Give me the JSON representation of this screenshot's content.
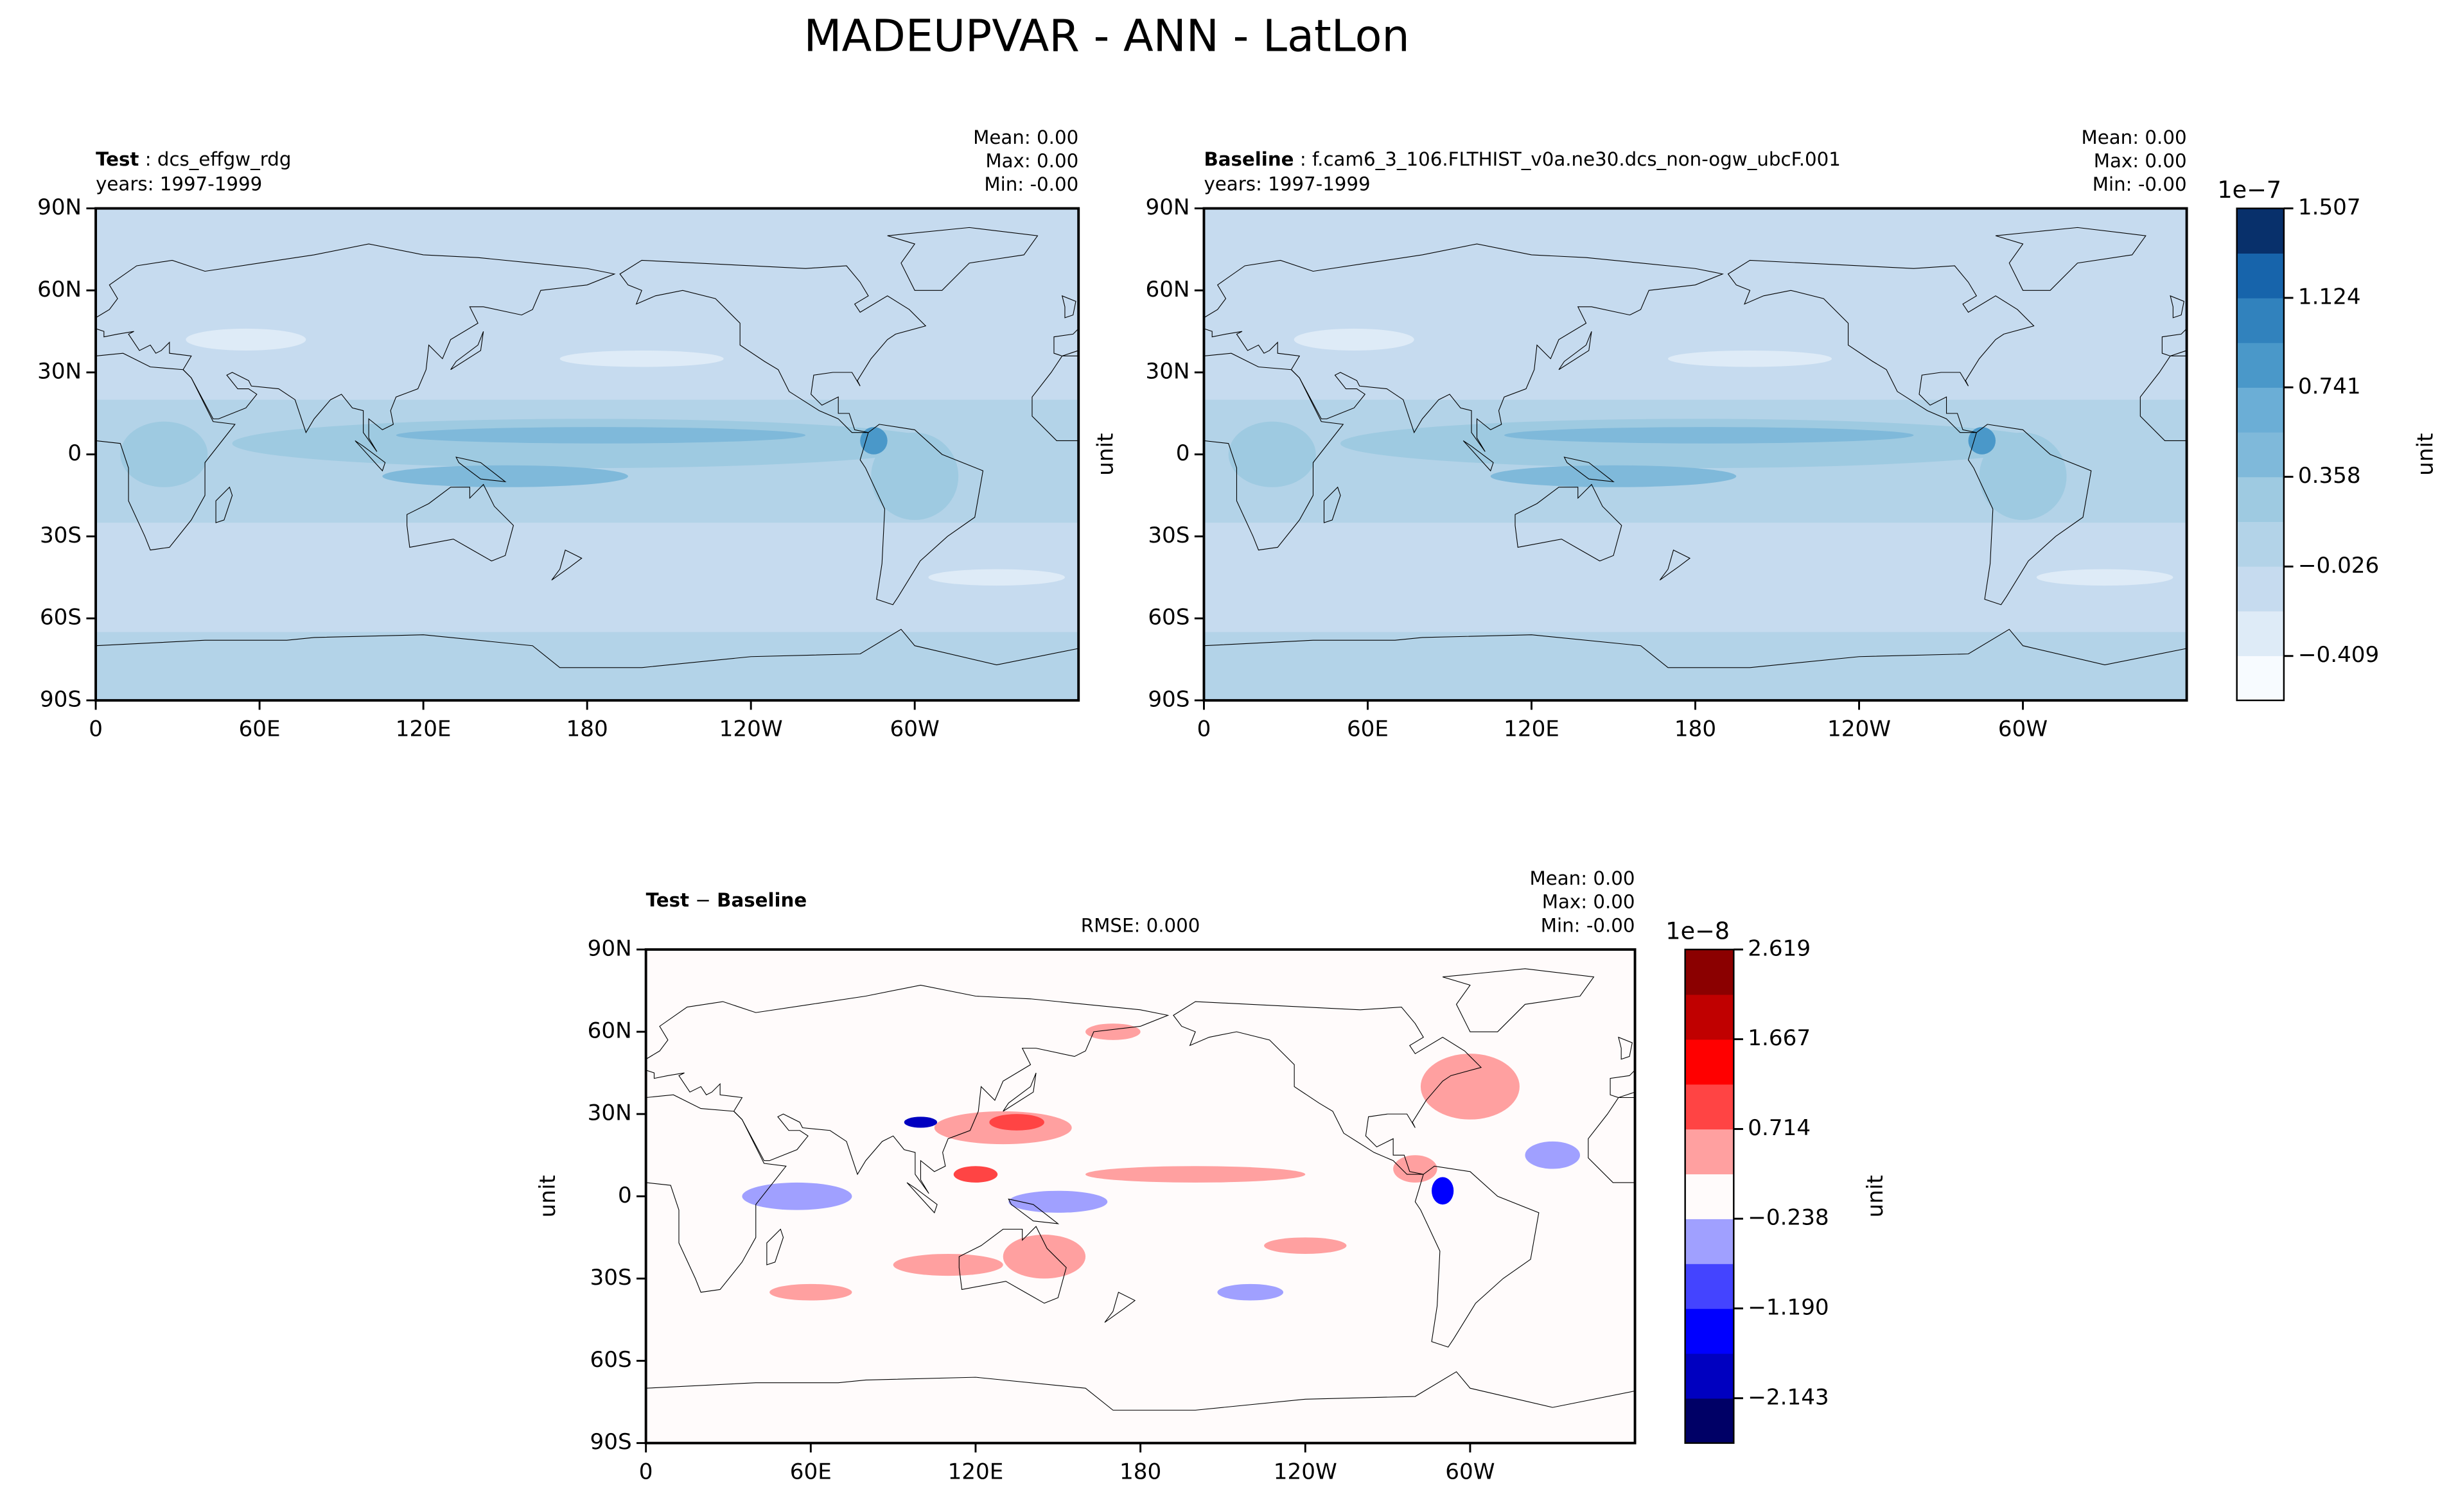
{
  "title": "MADEUPVAR - ANN - LatLon",
  "chart_data": [
    {
      "type": "contour",
      "cmap": "Blues",
      "title_parts": [
        {
          "text": "Test",
          "bold": true
        },
        {
          "text": " : dcs_effgw_rdg",
          "bold": false
        }
      ],
      "subtitle": "years: 1997-1999",
      "stats": {
        "labels": [
          "Mean:",
          "Max:",
          "Min:"
        ],
        "values": [
          0,
          0,
          0
        ],
        "value_labels": [
          "0.00",
          "0.00",
          "-0.00"
        ]
      },
      "xlim": [
        0,
        360
      ],
      "ylim": [
        -90,
        90
      ],
      "xticks": [
        0,
        {
          "value": 60,
          "label": "60E"
        },
        {
          "value": 120,
          "label": "120E"
        },
        180,
        {
          "value": 240,
          "label": "120W"
        },
        {
          "value": 300,
          "label": "60W"
        }
      ],
      "yticks": [
        {
          "value": -90,
          "label": "90S"
        },
        {
          "value": -60,
          "label": "60S"
        },
        {
          "value": -30,
          "label": "30S"
        },
        0,
        {
          "value": 30,
          "label": "30N"
        },
        {
          "value": 60,
          "label": "60N"
        },
        {
          "value": 90,
          "label": "90N"
        }
      ]
    },
    {
      "type": "contour",
      "cmap": "Blues",
      "title_parts": [
        {
          "text": "Baseline",
          "bold": true
        },
        {
          "text": " : f.cam6_3_106.FLTHIST_v0a.ne30.dcs_non-ogw_ubcF.001",
          "bold": false
        }
      ],
      "subtitle": "years: 1997-1999",
      "stats": {
        "labels": [
          "Mean:",
          "Max:",
          "Min:"
        ],
        "values": [
          0,
          0,
          0
        ],
        "value_labels": [
          "0.00",
          "0.00",
          "-0.00"
        ]
      },
      "ylabel": "unit",
      "xlim": [
        0,
        360
      ],
      "ylim": [
        -90,
        90
      ],
      "xticks": [
        0,
        {
          "value": 60,
          "label": "60E"
        },
        {
          "value": 120,
          "label": "120E"
        },
        180,
        {
          "value": 240,
          "label": "120W"
        },
        {
          "value": 300,
          "label": "60W"
        }
      ],
      "yticks": [
        {
          "value": -90,
          "label": "90S"
        },
        {
          "value": -60,
          "label": "60S"
        },
        {
          "value": -30,
          "label": "30S"
        },
        0,
        {
          "value": 30,
          "label": "30N"
        },
        {
          "value": 60,
          "label": "60N"
        },
        {
          "value": 90,
          "label": "90N"
        }
      ],
      "colorbar": {
        "offset_label": "1e−7",
        "label": "unit",
        "clim": [
          -0.599,
          1.507
        ],
        "ticks": [
          {
            "value": -0.409,
            "label": "−0.409"
          },
          {
            "value": -0.026,
            "label": "−0.026"
          },
          0.358,
          0.741,
          1.124,
          1.507
        ],
        "colors": [
          "#f7fbff",
          "#deebf7",
          "#c6dbef",
          "#b3d3e8",
          "#9ecae1",
          "#7fb9da",
          "#6baed6",
          "#4a98c9",
          "#3182bd",
          "#1764ab",
          "#08306b"
        ]
      }
    },
    {
      "type": "contour",
      "cmap": "bwr",
      "title_parts": [
        {
          "text": "Test",
          "bold": true
        },
        {
          "text": " − ",
          "bold": false
        },
        {
          "text": "Baseline",
          "bold": true
        }
      ],
      "rmse": {
        "label": "RMSE:",
        "value": 0,
        "value_label": "0.000"
      },
      "stats": {
        "labels": [
          "Mean:",
          "Max:",
          "Min:"
        ],
        "values": [
          0,
          0,
          0
        ],
        "value_labels": [
          "0.00",
          "0.00",
          "-0.00"
        ]
      },
      "ylabel": "unit",
      "xlim": [
        0,
        360
      ],
      "ylim": [
        -90,
        90
      ],
      "xticks": [
        0,
        {
          "value": 60,
          "label": "60E"
        },
        {
          "value": 120,
          "label": "120E"
        },
        180,
        {
          "value": 240,
          "label": "120W"
        },
        {
          "value": 300,
          "label": "60W"
        }
      ],
      "yticks": [
        {
          "value": -90,
          "label": "90S"
        },
        {
          "value": -60,
          "label": "60S"
        },
        {
          "value": -30,
          "label": "30S"
        },
        0,
        {
          "value": 30,
          "label": "30N"
        },
        {
          "value": 60,
          "label": "60N"
        },
        {
          "value": 90,
          "label": "90N"
        }
      ],
      "colorbar": {
        "offset_label": "1e−8",
        "label": "unit",
        "clim": [
          -2.619,
          2.619
        ],
        "ticks": [
          {
            "value": -2.143,
            "label": "−2.143"
          },
          {
            "value": -1.19,
            "label": "−1.190"
          },
          {
            "value": -0.238,
            "label": "−0.238"
          },
          0.714,
          1.667,
          2.619
        ],
        "colors": [
          "#000066",
          "#0000c0",
          "#0000ff",
          "#4444ff",
          "#a0a0ff",
          "#fffbfb",
          "#ffa0a0",
          "#ff4444",
          "#ff0000",
          "#c00000",
          "#8b0000"
        ]
      }
    }
  ]
}
